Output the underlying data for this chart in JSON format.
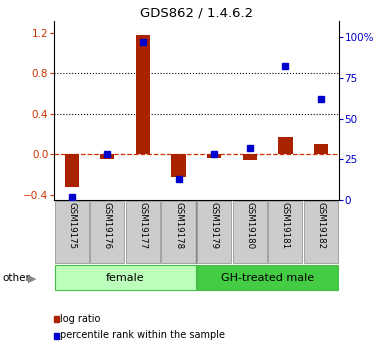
{
  "title": "GDS862 / 1.4.6.2",
  "samples": [
    "GSM19175",
    "GSM19176",
    "GSM19177",
    "GSM19178",
    "GSM19179",
    "GSM19180",
    "GSM19181",
    "GSM19182"
  ],
  "log_ratio": [
    -0.32,
    -0.04,
    1.18,
    -0.22,
    -0.03,
    -0.05,
    0.17,
    0.1
  ],
  "percentile_rank": [
    2,
    28,
    97,
    13,
    28,
    32,
    82,
    62
  ],
  "groups": [
    {
      "label": "female",
      "indices": [
        0,
        1,
        2,
        3
      ],
      "color": "#bbffbb"
    },
    {
      "label": "GH-treated male",
      "indices": [
        4,
        5,
        6,
        7
      ],
      "color": "#44cc44"
    }
  ],
  "ylim_left": [
    -0.45,
    1.32
  ],
  "ylim_right": [
    0,
    110
  ],
  "yticks_left": [
    -0.4,
    0.0,
    0.4,
    0.8,
    1.2
  ],
  "yticks_right": [
    0,
    25,
    50,
    75,
    100
  ],
  "yticklabels_right": [
    "0",
    "25",
    "50",
    "75",
    "100%"
  ],
  "hlines": [
    0.4,
    0.8
  ],
  "bar_color": "#aa2200",
  "dot_color": "#0000cc",
  "zero_line_color": "#cc3300",
  "legend_items": [
    {
      "label": "log ratio",
      "color": "#aa2200"
    },
    {
      "label": "percentile rank within the sample",
      "color": "#0000cc"
    }
  ]
}
